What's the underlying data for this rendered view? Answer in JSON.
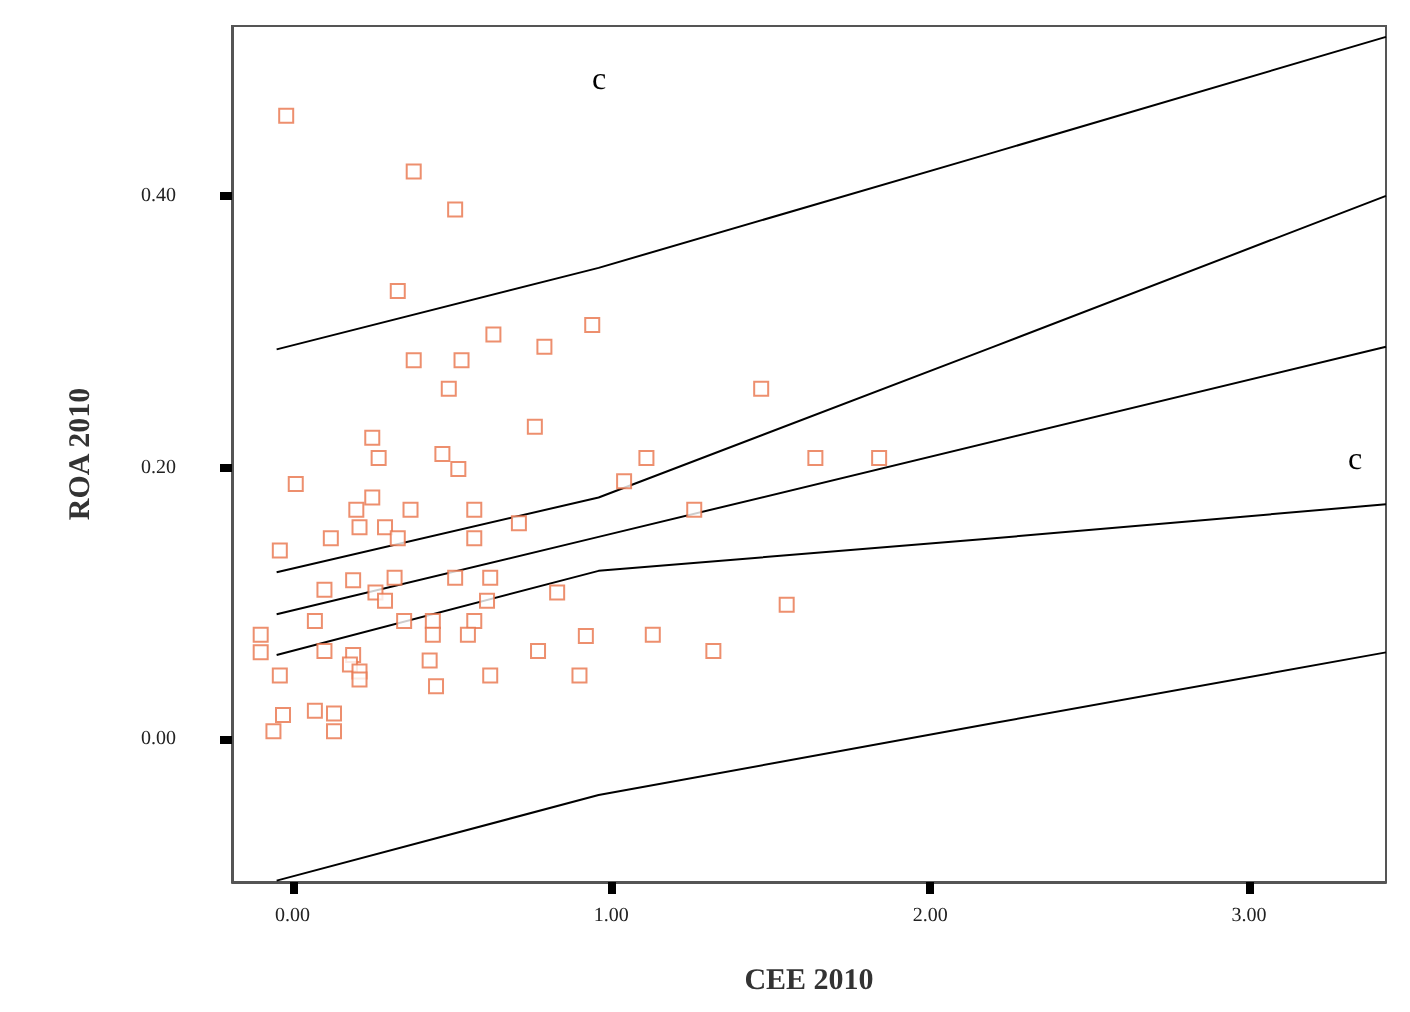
{
  "chart_data": {
    "type": "scatter",
    "xlabel": "CEE 2010",
    "ylabel": "ROA 2010",
    "xlim": [
      -0.19,
      3.43
    ],
    "ylim": [
      -0.105,
      0.525
    ],
    "xticks": [
      {
        "value": 0,
        "label": "0.00"
      },
      {
        "value": 1,
        "label": "1.00"
      },
      {
        "value": 2,
        "label": "2.00"
      },
      {
        "value": 3,
        "label": "3.00"
      }
    ],
    "yticks": [
      {
        "value": 0,
        "label": "0.00"
      },
      {
        "value": 0.2,
        "label": "0.20"
      },
      {
        "value": 0.4,
        "label": "0.40"
      }
    ],
    "grid": false,
    "annotations": [
      "c",
      "c"
    ],
    "series": [
      {
        "marker": "square",
        "color": "#e8734a",
        "x": [
          -0.02,
          0.38,
          0.51,
          0.33,
          0.63,
          0.94,
          0.79,
          0.38,
          0.53,
          0.49,
          0.25,
          0.76,
          0.27,
          0.47,
          0.52,
          0.01,
          1.11,
          1.04,
          0.25,
          0.2,
          0.37,
          0.57,
          0.21,
          0.29,
          0.33,
          0.57,
          0.71,
          0.12,
          -0.04,
          1.26,
          0.1,
          0.19,
          0.32,
          0.26,
          0.29,
          0.51,
          0.62,
          0.61,
          0.83,
          0.07,
          0.35,
          0.44,
          0.57,
          0.44,
          0.55,
          -0.1,
          -0.1,
          0.1,
          0.19,
          0.18,
          0.21,
          0.21,
          0.43,
          0.77,
          0.92,
          1.13,
          -0.04,
          0.62,
          0.9,
          0.45,
          -0.03,
          -0.06,
          0.07,
          0.13,
          0.13,
          1.47,
          1.64,
          1.84,
          1.55,
          1.32
        ],
        "values": [
          0.459,
          0.418,
          0.39,
          0.33,
          0.298,
          0.305,
          0.289,
          0.279,
          0.279,
          0.258,
          0.222,
          0.23,
          0.207,
          0.21,
          0.199,
          0.188,
          0.207,
          0.19,
          0.178,
          0.169,
          0.169,
          0.169,
          0.156,
          0.156,
          0.148,
          0.148,
          0.159,
          0.148,
          0.139,
          0.169,
          0.11,
          0.117,
          0.119,
          0.108,
          0.102,
          0.119,
          0.119,
          0.102,
          0.108,
          0.087,
          0.087,
          0.087,
          0.087,
          0.077,
          0.077,
          0.077,
          0.064,
          0.065,
          0.062,
          0.055,
          0.05,
          0.044,
          0.058,
          0.065,
          0.076,
          0.077,
          0.047,
          0.047,
          0.047,
          0.039,
          0.018,
          0.006,
          0.021,
          0.019,
          0.006,
          0.258,
          0.207,
          0.207,
          0.099,
          0.065
        ]
      },
      {
        "type": "line",
        "marker": "none",
        "color": "#000000",
        "x": [
          -0.05,
          0.96,
          2.2,
          3.43
        ],
        "values": [
          0.287,
          0.347,
          0.432,
          0.517
        ]
      },
      {
        "type": "line",
        "marker": "none",
        "color": "#000000",
        "x": [
          -0.05,
          0.96,
          2.2,
          3.43
        ],
        "values": [
          0.123,
          0.178,
          0.289,
          0.4
        ]
      },
      {
        "type": "line",
        "marker": "none",
        "color": "#000000",
        "x": [
          -0.05,
          0.96,
          3.43
        ],
        "values": [
          0.092,
          0.149,
          0.289
        ]
      },
      {
        "type": "line",
        "marker": "none",
        "color": "#000000",
        "x": [
          -0.05,
          0.96,
          2.2,
          3.43
        ],
        "values": [
          0.062,
          0.124,
          0.148,
          0.173
        ]
      },
      {
        "type": "line",
        "marker": "none",
        "color": "#000000",
        "x": [
          -0.05,
          0.96,
          2.2,
          3.43
        ],
        "values": [
          -0.104,
          -0.041,
          0.012,
          0.064
        ]
      }
    ]
  }
}
